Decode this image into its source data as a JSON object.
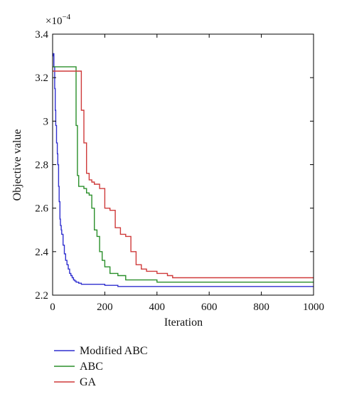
{
  "chart_data": {
    "type": "line",
    "xlabel": "Iteration",
    "ylabel": "Objective value",
    "y_exponent_label": "×10",
    "y_exponent": "−4",
    "xlim": [
      0,
      1000
    ],
    "ylim": [
      2.2,
      3.4
    ],
    "x_ticks": [
      0,
      200,
      400,
      600,
      800,
      1000
    ],
    "y_ticks": [
      2.2,
      2.4,
      2.6,
      2.8,
      3,
      3.2,
      3.4
    ],
    "grid": false,
    "legend_position": "below-left",
    "series": [
      {
        "name": "Modified ABC",
        "color": "#2f2fcf",
        "x": [
          0,
          3,
          5,
          8,
          10,
          12,
          15,
          18,
          20,
          23,
          25,
          28,
          30,
          33,
          35,
          40,
          45,
          50,
          55,
          60,
          65,
          70,
          75,
          80,
          85,
          90,
          100,
          110,
          130,
          150,
          200,
          250,
          300,
          1000
        ],
        "y": [
          3.3,
          3.31,
          3.25,
          3.15,
          3.05,
          2.98,
          2.9,
          2.85,
          2.8,
          2.7,
          2.63,
          2.55,
          2.52,
          2.5,
          2.48,
          2.43,
          2.39,
          2.36,
          2.34,
          2.32,
          2.3,
          2.29,
          2.28,
          2.27,
          2.265,
          2.26,
          2.255,
          2.25,
          2.25,
          2.25,
          2.245,
          2.24,
          2.24,
          2.24
        ]
      },
      {
        "name": "ABC",
        "color": "#2a8f2a",
        "x": [
          0,
          85,
          90,
          95,
          100,
          110,
          120,
          130,
          140,
          150,
          160,
          170,
          180,
          190,
          200,
          220,
          250,
          280,
          300,
          400,
          1000
        ],
        "y": [
          3.25,
          3.25,
          2.98,
          2.75,
          2.7,
          2.7,
          2.69,
          2.67,
          2.66,
          2.6,
          2.5,
          2.47,
          2.4,
          2.36,
          2.33,
          2.3,
          2.29,
          2.27,
          2.27,
          2.26,
          2.26
        ]
      },
      {
        "name": "GA",
        "color": "#cf3a3a",
        "x": [
          0,
          100,
          110,
          120,
          130,
          140,
          150,
          160,
          180,
          200,
          220,
          240,
          260,
          280,
          300,
          320,
          340,
          360,
          400,
          440,
          460,
          1000
        ],
        "y": [
          3.23,
          3.23,
          3.05,
          2.9,
          2.76,
          2.73,
          2.72,
          2.71,
          2.69,
          2.6,
          2.59,
          2.51,
          2.48,
          2.47,
          2.4,
          2.34,
          2.32,
          2.31,
          2.3,
          2.29,
          2.28,
          2.28
        ]
      }
    ]
  }
}
